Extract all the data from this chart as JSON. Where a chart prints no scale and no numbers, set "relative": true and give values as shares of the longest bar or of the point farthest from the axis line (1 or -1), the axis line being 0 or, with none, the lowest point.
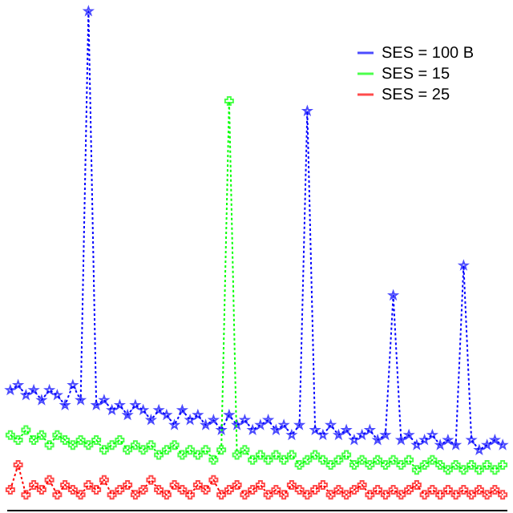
{
  "chart_data": {
    "type": "line",
    "relative": true,
    "line_style": "dotted",
    "legend": "top right",
    "tick_labels": false,
    "grid": false,
    "categories": [
      null,
      null,
      null,
      null,
      null,
      null,
      null,
      null,
      null,
      null,
      null,
      null,
      null,
      null,
      null,
      null,
      null,
      null,
      null,
      null,
      null,
      null,
      null,
      null,
      null,
      null,
      null,
      null,
      null,
      null,
      null,
      null,
      null,
      null,
      null,
      null,
      null,
      null,
      null,
      null,
      null,
      null,
      null,
      null,
      null,
      null,
      null,
      null,
      null,
      null,
      null,
      null,
      null,
      null,
      null,
      null,
      null,
      null,
      null,
      null,
      null,
      null,
      null,
      null
    ],
    "series": [
      {
        "name": "SES = 100 B",
        "color": "#0000ff",
        "marker": "star",
        "values": [
          0.24,
          0.25,
          0.23,
          0.24,
          0.22,
          0.24,
          0.23,
          0.21,
          0.25,
          0.22,
          1.0,
          0.21,
          0.22,
          0.2,
          0.21,
          0.19,
          0.21,
          0.2,
          0.18,
          0.2,
          0.19,
          0.17,
          0.2,
          0.18,
          0.19,
          0.17,
          0.18,
          0.16,
          0.19,
          0.17,
          0.18,
          0.16,
          0.17,
          0.18,
          0.16,
          0.17,
          0.15,
          0.17,
          0.8,
          0.16,
          0.15,
          0.17,
          0.15,
          0.16,
          0.14,
          0.15,
          0.16,
          0.14,
          0.15,
          0.43,
          0.14,
          0.15,
          0.13,
          0.14,
          0.15,
          0.13,
          0.14,
          0.13,
          0.49,
          0.14,
          0.12,
          0.13,
          0.14,
          0.13
        ]
      },
      {
        "name": "SES = 15",
        "color": "#00ff00",
        "marker": "cross",
        "values": [
          0.15,
          0.14,
          0.16,
          0.14,
          0.15,
          0.13,
          0.15,
          0.14,
          0.13,
          0.14,
          0.13,
          0.14,
          0.12,
          0.13,
          0.14,
          0.12,
          0.13,
          0.12,
          0.13,
          0.11,
          0.12,
          0.13,
          0.11,
          0.12,
          0.11,
          0.12,
          0.1,
          0.12,
          0.82,
          0.11,
          0.12,
          0.1,
          0.11,
          0.1,
          0.11,
          0.1,
          0.11,
          0.09,
          0.1,
          0.11,
          0.1,
          0.09,
          0.1,
          0.11,
          0.09,
          0.1,
          0.09,
          0.1,
          0.09,
          0.1,
          0.09,
          0.1,
          0.08,
          0.09,
          0.1,
          0.09,
          0.08,
          0.09,
          0.08,
          0.09,
          0.08,
          0.09,
          0.08,
          0.09
        ]
      },
      {
        "name": "SES = 25",
        "color": "#ff0000",
        "marker": "cross",
        "values": [
          0.04,
          0.09,
          0.03,
          0.05,
          0.04,
          0.06,
          0.03,
          0.05,
          0.04,
          0.03,
          0.05,
          0.04,
          0.06,
          0.03,
          0.04,
          0.05,
          0.03,
          0.04,
          0.06,
          0.04,
          0.03,
          0.05,
          0.04,
          0.03,
          0.05,
          0.04,
          0.06,
          0.03,
          0.04,
          0.05,
          0.03,
          0.04,
          0.05,
          0.03,
          0.04,
          0.03,
          0.05,
          0.04,
          0.03,
          0.04,
          0.05,
          0.03,
          0.04,
          0.03,
          0.04,
          0.05,
          0.03,
          0.04,
          0.03,
          0.04,
          0.03,
          0.04,
          0.05,
          0.03,
          0.04,
          0.03,
          0.04,
          0.03,
          0.04,
          0.03,
          0.04,
          0.03,
          0.04,
          0.03
        ]
      }
    ]
  }
}
